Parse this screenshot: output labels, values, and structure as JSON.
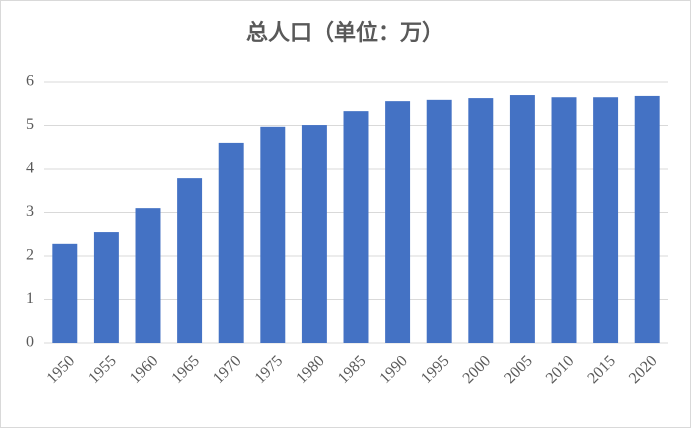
{
  "chart_data": {
    "type": "bar",
    "title": "总人口（单位：万）",
    "categories": [
      "1950",
      "1955",
      "1960",
      "1965",
      "1970",
      "1975",
      "1980",
      "1985",
      "1990",
      "1995",
      "2000",
      "2005",
      "2010",
      "2015",
      "2020"
    ],
    "values": [
      2.28,
      2.55,
      3.1,
      3.79,
      4.6,
      4.97,
      5.01,
      5.33,
      5.56,
      5.59,
      5.63,
      5.7,
      5.65,
      5.65,
      5.68
    ],
    "color": "#4472c4",
    "ylim": [
      0,
      6
    ],
    "yticks": [
      0,
      1,
      2,
      3,
      4,
      5,
      6
    ],
    "grid": true
  }
}
